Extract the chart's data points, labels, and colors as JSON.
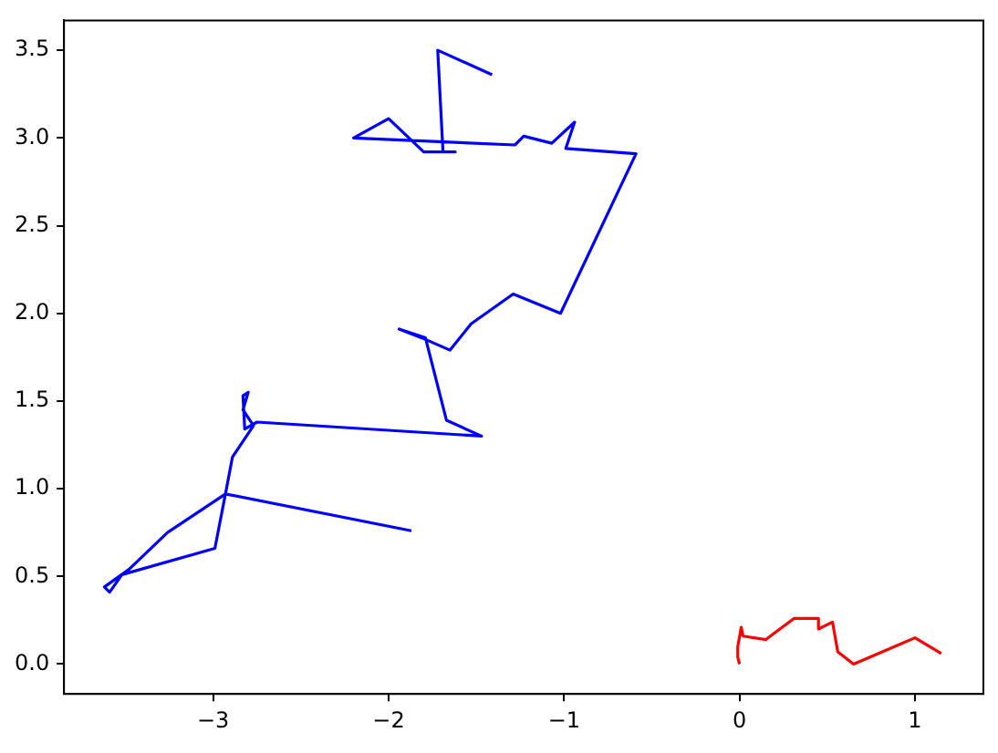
{
  "chart_data": {
    "type": "line",
    "xlim": [
      -3.85,
      1.39
    ],
    "ylim": [
      -0.17,
      3.67
    ],
    "xticks": [
      {
        "value": -3,
        "label": "−3"
      },
      {
        "value": -2,
        "label": "−2"
      },
      {
        "value": -1,
        "label": "−1"
      },
      0,
      1
    ],
    "yticks": [
      {
        "value": 0,
        "label": "0.0"
      },
      0.5,
      {
        "value": 1,
        "label": "1.0"
      },
      1.5,
      {
        "value": 2,
        "label": "2.0"
      },
      2.5,
      {
        "value": 3,
        "label": "3.0"
      },
      3.5
    ],
    "series": [
      {
        "color": "#0000ff",
        "x": [
          -1.87,
          -2.93,
          -2.99,
          -3.52,
          -3.59,
          -3.62,
          -3.48,
          -3.26,
          -2.93,
          -2.89,
          -2.77,
          -2.83,
          -2.8,
          -2.83,
          -2.82,
          -2.75,
          -1.47,
          -1.67,
          -1.79,
          -1.94,
          -1.81,
          -1.65,
          -1.53,
          -1.29,
          -1.02,
          -0.59,
          -0.99,
          -0.94,
          -1.07,
          -1.23,
          -1.28,
          -2.2,
          -2.0,
          -1.8,
          -1.62,
          -1.69,
          -1.72,
          -1.41
        ],
        "values": [
          0.76,
          0.97,
          0.66,
          0.51,
          0.41,
          0.44,
          0.54,
          0.75,
          0.97,
          1.18,
          1.36,
          1.45,
          1.55,
          1.53,
          1.34,
          1.38,
          1.3,
          1.39,
          1.86,
          1.91,
          1.86,
          1.79,
          1.94,
          2.11,
          2.0,
          2.91,
          2.94,
          3.09,
          2.97,
          3.01,
          2.96,
          3.0,
          3.11,
          2.92,
          2.92,
          2.92,
          3.5,
          3.36
        ]
      },
      {
        "color": "#ff0000",
        "x": [
          0,
          -0.01,
          -0.01,
          0.01,
          0.02,
          0.15,
          0.31,
          0.45,
          0.45,
          0.49,
          0.53,
          0.56,
          0.65,
          0.79,
          1.0,
          1.15
        ],
        "values": [
          0,
          0.04,
          0.1,
          0.21,
          0.16,
          0.14,
          0.26,
          0.26,
          0.2,
          0.22,
          0.24,
          0.07,
          0,
          0.06,
          0.15,
          0.06
        ]
      }
    ]
  }
}
